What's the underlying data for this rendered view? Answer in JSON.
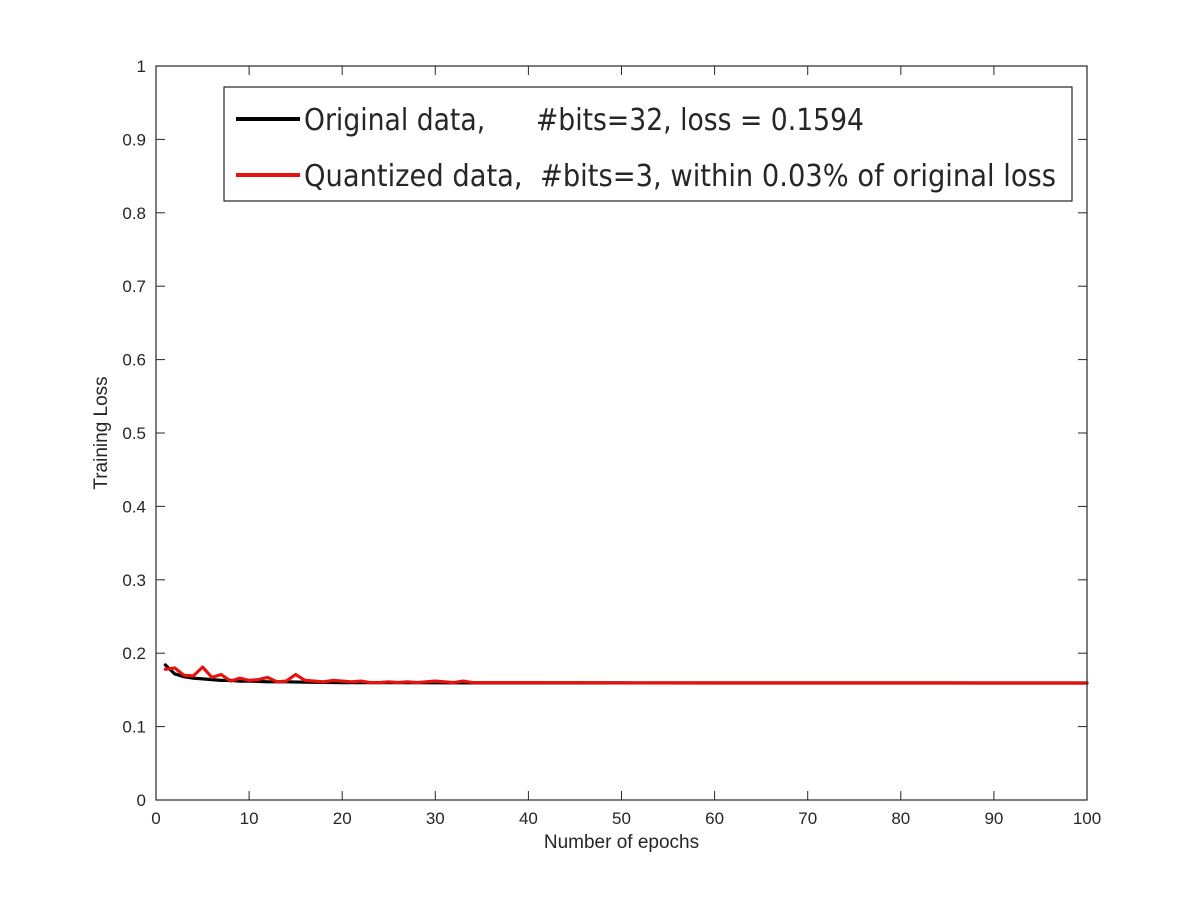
{
  "chart_data": {
    "type": "line",
    "xlabel": "Number of epochs",
    "ylabel": "Training Loss",
    "xlim": [
      0,
      100
    ],
    "ylim": [
      0,
      1
    ],
    "xticks": [
      "0",
      "10",
      "20",
      "30",
      "40",
      "50",
      "60",
      "70",
      "80",
      "90",
      "100"
    ],
    "yticks": [
      "0",
      "0.1",
      "0.2",
      "0.3",
      "0.4",
      "0.5",
      "0.6",
      "0.7",
      "0.8",
      "0.9",
      "1"
    ],
    "grid": false,
    "legend_position": "top-right",
    "legend": [
      "Original data,      #bits=32, loss = 0.1594",
      "Quantized data,  #bits=3, within 0.03% of original loss"
    ],
    "series": [
      {
        "name": "Original data,      #bits=32, loss = 0.1594",
        "color": "#000000",
        "x": [
          1,
          2,
          3,
          4,
          5,
          6,
          7,
          8,
          9,
          10,
          12,
          14,
          16,
          18,
          20,
          25,
          30,
          35,
          40,
          50,
          60,
          70,
          80,
          90,
          100
        ],
        "values": [
          0.184,
          0.172,
          0.168,
          0.166,
          0.165,
          0.164,
          0.163,
          0.163,
          0.162,
          0.162,
          0.161,
          0.161,
          0.1605,
          0.1602,
          0.16,
          0.1598,
          0.1597,
          0.1596,
          0.1595,
          0.1595,
          0.1594,
          0.1594,
          0.1594,
          0.1594,
          0.1594
        ]
      },
      {
        "name": "Quantized data,  #bits=3, within 0.03% of original loss",
        "color": "#e8120c",
        "x": [
          1,
          2,
          3,
          4,
          5,
          6,
          7,
          8,
          9,
          10,
          11,
          12,
          13,
          14,
          15,
          16,
          17,
          18,
          19,
          20,
          21,
          22,
          23,
          24,
          25,
          26,
          27,
          28,
          29,
          30,
          31,
          32,
          33,
          34,
          36,
          38,
          40,
          45,
          50,
          55,
          60,
          65,
          70,
          75,
          80,
          85,
          90,
          95,
          100
        ],
        "values": [
          0.178,
          0.18,
          0.17,
          0.169,
          0.181,
          0.167,
          0.171,
          0.162,
          0.166,
          0.163,
          0.164,
          0.167,
          0.161,
          0.162,
          0.171,
          0.163,
          0.162,
          0.161,
          0.163,
          0.162,
          0.161,
          0.162,
          0.16,
          0.16,
          0.161,
          0.16,
          0.161,
          0.16,
          0.161,
          0.162,
          0.161,
          0.16,
          0.162,
          0.16,
          0.16,
          0.16,
          0.16,
          0.1598,
          0.1597,
          0.1596,
          0.1596,
          0.1595,
          0.1595,
          0.1595,
          0.1595,
          0.1595,
          0.1594,
          0.1594,
          0.1594
        ]
      }
    ]
  }
}
